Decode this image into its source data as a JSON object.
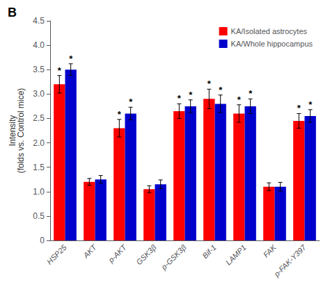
{
  "chart_data": {
    "type": "bar",
    "title": "B",
    "ylabel": "Intensity\n(folds vs. Control mice)",
    "categories": [
      "HSP25",
      "AKT",
      "p-AKT",
      "GSK3β",
      "p-GSK3β",
      "Bif-1",
      "LAMP1",
      "FAK",
      "p-FAK-Y397"
    ],
    "series": [
      {
        "name": "KA/Isolated astrocytes",
        "color": "#FF0000",
        "values": [
          3.2,
          1.2,
          2.3,
          1.05,
          2.65,
          2.9,
          2.6,
          1.1,
          2.45
        ],
        "errors": [
          0.18,
          0.07,
          0.18,
          0.07,
          0.15,
          0.2,
          0.18,
          0.08,
          0.15
        ],
        "annotations": [
          "*",
          null,
          "*",
          null,
          "*",
          "*",
          "*",
          null,
          "*"
        ]
      },
      {
        "name": "KA/Whole hippocampus",
        "color": "#0000CC",
        "values": [
          3.5,
          1.25,
          2.6,
          1.15,
          2.75,
          2.8,
          2.75,
          1.1,
          2.55
        ],
        "errors": [
          0.12,
          0.08,
          0.13,
          0.09,
          0.13,
          0.18,
          0.15,
          0.09,
          0.13
        ],
        "annotations": [
          "*",
          null,
          "*",
          null,
          "*",
          "*",
          "*",
          null,
          "*"
        ]
      }
    ],
    "ylim": [
      0,
      4.5
    ],
    "yticks": [
      0,
      0.5,
      {
        "value": 1,
        "label": "1.0"
      },
      1.5,
      {
        "value": 2,
        "label": "2.0"
      },
      2.5,
      {
        "value": 3,
        "label": "3.0"
      },
      3.5,
      {
        "value": 4,
        "label": "4.0"
      },
      4.5
    ],
    "grid": false,
    "legend": "upper right"
  }
}
